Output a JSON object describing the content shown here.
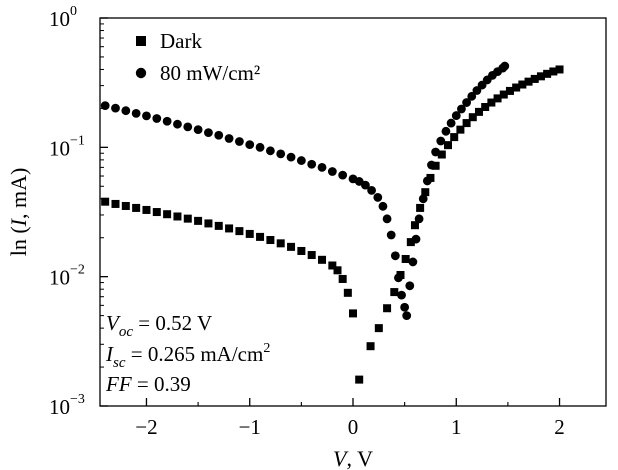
{
  "chart_data": {
    "type": "scatter",
    "title": "",
    "xlabel": {
      "italic": "V",
      "rest": ", V"
    },
    "ylabel": {
      "pre": "ln (",
      "italic": "I",
      "post": ", mA)"
    },
    "xlim": [
      -2.45,
      2.45
    ],
    "ylim": [
      0.001,
      1
    ],
    "yscale": "log",
    "x_ticks": [
      {
        "value": -2,
        "label": "−2"
      },
      {
        "value": -1,
        "label": "−1"
      },
      {
        "value": 0,
        "label": "0"
      },
      {
        "value": 1,
        "label": "1"
      },
      {
        "value": 2,
        "label": "2"
      }
    ],
    "y_ticks": [
      {
        "value": 0.001,
        "base": "10",
        "exp": "−3"
      },
      {
        "value": 0.01,
        "base": "10",
        "exp": "−2"
      },
      {
        "value": 0.1,
        "base": "10",
        "exp": "−1"
      },
      {
        "value": 1,
        "base": "10",
        "exp": "0"
      }
    ],
    "grid": false,
    "legend_position": "top-left",
    "series": [
      {
        "name": "Dark",
        "marker": "square",
        "points": [
          [
            -2.4,
            0.038
          ],
          [
            -2.3,
            0.0365
          ],
          [
            -2.2,
            0.0352
          ],
          [
            -2.1,
            0.034
          ],
          [
            -2.0,
            0.0328
          ],
          [
            -1.9,
            0.0316
          ],
          [
            -1.8,
            0.0304
          ],
          [
            -1.7,
            0.0292
          ],
          [
            -1.6,
            0.0281
          ],
          [
            -1.5,
            0.027
          ],
          [
            -1.4,
            0.0258
          ],
          [
            -1.3,
            0.0247
          ],
          [
            -1.2,
            0.0236
          ],
          [
            -1.1,
            0.0225
          ],
          [
            -1.0,
            0.0214
          ],
          [
            -0.9,
            0.0203
          ],
          [
            -0.8,
            0.0192
          ],
          [
            -0.7,
            0.0181
          ],
          [
            -0.6,
            0.017
          ],
          [
            -0.5,
            0.0158
          ],
          [
            -0.4,
            0.0147
          ],
          [
            -0.3,
            0.0135
          ],
          [
            -0.2,
            0.0122
          ],
          [
            -0.15,
            0.0112
          ],
          [
            -0.1,
            0.0096
          ],
          [
            -0.05,
            0.0075
          ],
          [
            0.0,
            0.0052
          ],
          [
            0.06,
            0.0016
          ],
          [
            0.17,
            0.0029
          ],
          [
            0.25,
            0.004
          ],
          [
            0.33,
            0.0057
          ],
          [
            0.4,
            0.0076
          ],
          [
            0.46,
            0.0103
          ],
          [
            0.51,
            0.0137
          ],
          [
            0.56,
            0.0185
          ],
          [
            0.6,
            0.025
          ],
          [
            0.65,
            0.034
          ],
          [
            0.7,
            0.045
          ],
          [
            0.75,
            0.058
          ],
          [
            0.8,
            0.072
          ],
          [
            0.86,
            0.088
          ],
          [
            0.92,
            0.104
          ],
          [
            0.98,
            0.12
          ],
          [
            1.04,
            0.137
          ],
          [
            1.1,
            0.154
          ],
          [
            1.16,
            0.171
          ],
          [
            1.22,
            0.188
          ],
          [
            1.28,
            0.205
          ],
          [
            1.34,
            0.222
          ],
          [
            1.4,
            0.239
          ],
          [
            1.46,
            0.256
          ],
          [
            1.52,
            0.273
          ],
          [
            1.58,
            0.29
          ],
          [
            1.64,
            0.306
          ],
          [
            1.7,
            0.322
          ],
          [
            1.76,
            0.338
          ],
          [
            1.82,
            0.354
          ],
          [
            1.88,
            0.37
          ],
          [
            1.94,
            0.386
          ],
          [
            2.0,
            0.4
          ]
        ]
      },
      {
        "name": "80 mW/cm²",
        "marker": "circle",
        "points": [
          [
            -2.4,
            0.21
          ],
          [
            -2.3,
            0.201
          ],
          [
            -2.2,
            0.192
          ],
          [
            -2.1,
            0.183
          ],
          [
            -2.0,
            0.175
          ],
          [
            -1.9,
            0.167
          ],
          [
            -1.8,
            0.159
          ],
          [
            -1.7,
            0.151
          ],
          [
            -1.6,
            0.144
          ],
          [
            -1.5,
            0.137
          ],
          [
            -1.4,
            0.13
          ],
          [
            -1.3,
            0.124
          ],
          [
            -1.2,
            0.117
          ],
          [
            -1.1,
            0.111
          ],
          [
            -1.0,
            0.105
          ],
          [
            -0.9,
            0.1
          ],
          [
            -0.8,
            0.094
          ],
          [
            -0.7,
            0.089
          ],
          [
            -0.6,
            0.084
          ],
          [
            -0.5,
            0.079
          ],
          [
            -0.4,
            0.074
          ],
          [
            -0.3,
            0.07
          ],
          [
            -0.2,
            0.065
          ],
          [
            -0.1,
            0.061
          ],
          [
            0.0,
            0.057
          ],
          [
            0.06,
            0.0545
          ],
          [
            0.12,
            0.051
          ],
          [
            0.18,
            0.0465
          ],
          [
            0.24,
            0.041
          ],
          [
            0.29,
            0.035
          ],
          [
            0.33,
            0.028
          ],
          [
            0.37,
            0.021
          ],
          [
            0.41,
            0.0145
          ],
          [
            0.44,
            0.0098
          ],
          [
            0.47,
            0.0072
          ],
          [
            0.5,
            0.0058
          ],
          [
            0.52,
            0.005
          ],
          [
            0.55,
            0.0085
          ],
          [
            0.58,
            0.013
          ],
          [
            0.61,
            0.0195
          ],
          [
            0.64,
            0.028
          ],
          [
            0.68,
            0.04
          ],
          [
            0.72,
            0.055
          ],
          [
            0.76,
            0.073
          ],
          [
            0.8,
            0.092
          ],
          [
            0.85,
            0.112
          ],
          [
            0.9,
            0.133
          ],
          [
            0.95,
            0.154
          ],
          [
            1.0,
            0.176
          ],
          [
            1.05,
            0.198
          ],
          [
            1.1,
            0.222
          ],
          [
            1.15,
            0.248
          ],
          [
            1.2,
            0.275
          ],
          [
            1.25,
            0.303
          ],
          [
            1.3,
            0.332
          ],
          [
            1.35,
            0.36
          ],
          [
            1.4,
            0.385
          ],
          [
            1.45,
            0.41
          ],
          [
            1.47,
            0.425
          ]
        ]
      }
    ],
    "annotations": [
      {
        "sym": "V",
        "sub": "oc",
        "value": " = 0.52 V",
        "sup": ""
      },
      {
        "sym": "I",
        "sub": "sc",
        "value": " = 0.265 mA/cm",
        "sup": "2"
      },
      {
        "sym": "FF",
        "sub": "",
        "value": " = 0.39",
        "sup": ""
      }
    ]
  }
}
